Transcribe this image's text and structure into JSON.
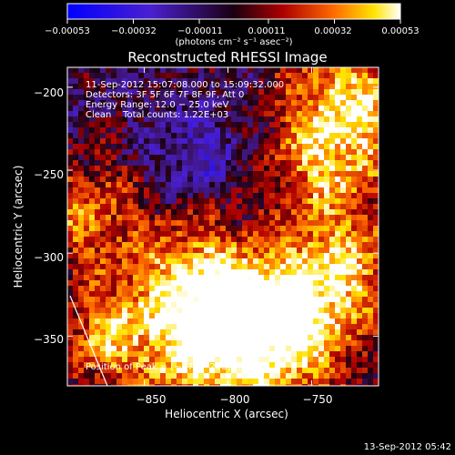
{
  "chart_data": {
    "type": "heatmap",
    "title": "Reconstructed RHESSI Image",
    "xlabel": "Heliocentric X (arcsec)",
    "ylabel": "Heliocentric Y (arcsec)",
    "xlim": [
      -896,
      -710
    ],
    "ylim": [
      -380,
      -188
    ],
    "x_ticks": [
      -850,
      -800,
      -750
    ],
    "x_tick_labels": [
      "−850",
      "−800",
      "−750"
    ],
    "y_ticks": [
      -200,
      -250,
      -300,
      -350
    ],
    "y_tick_labels": [
      "−200",
      "−250",
      "−300",
      "−350"
    ],
    "colorbar": {
      "min": -0.00053,
      "max": 0.00053,
      "ticks": [
        -0.00053,
        -0.00032,
        -0.00011,
        0.00011,
        0.00032,
        0.00053
      ],
      "tick_labels": [
        "−0.00053",
        "−0.00032",
        "−0.00011",
        "0.00011",
        "0.00032",
        "0.00053"
      ],
      "units": "(photons cm⁻² s⁻¹ asec⁻²)"
    },
    "annotations": [
      "11-Sep-2012 15:07:08.000 to 15:09:32.000",
      "Detectors: 3F 5F 6F 7F 8F 9F, Att 0",
      "Energy Range: 12.0 − 25.0 keV",
      "Clean    Total counts: 1.22E+03"
    ],
    "peak_label": "Position of Peak = [",
    "peak_value": "−774,−208",
    "peak_close": "]",
    "footer": "13-Sep-2012 05:42",
    "grid": false
  }
}
